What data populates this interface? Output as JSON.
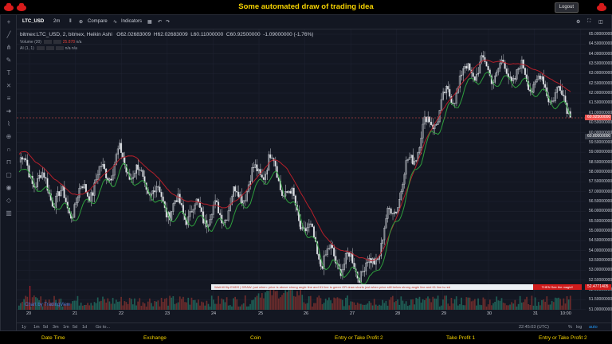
{
  "header": {
    "title": "Some automated draw of trading idea",
    "logout_label": "Logout"
  },
  "toolbar": {
    "symbol": "LTC_USD",
    "interval": "2m",
    "compare_label": "Compare",
    "indicators_label": "Indicators"
  },
  "legend": {
    "main": "bitmex:LTC_USD, 2, bitmex, Heikin Ashi",
    "open": "O62.02683009",
    "high": "H62.02683009",
    "low": "L60.11000000",
    "close": "C60.92500000",
    "change": "-1.09000000 (-1.76%)",
    "volume_label": "Volume (20)",
    "volume_value": "25.878",
    "volume_na": "n/a",
    "ai_label": "AI (1, 1)",
    "ai_na1": "n/a",
    "ai_na2": "n/a"
  },
  "y_axis_labels": [
    "65.00000000",
    "64.50000000",
    "64.00000000",
    "63.50000000",
    "63.00000000",
    "62.50000000",
    "62.00000000",
    "61.50000000",
    "61.00000000",
    "60.50000000",
    "60.00000000",
    "59.50000000",
    "59.00000000",
    "58.50000000",
    "58.00000000",
    "57.50000000",
    "57.00000000",
    "56.50000000",
    "56.00000000",
    "55.50000000",
    "55.00000000",
    "54.50000000",
    "54.00000000",
    "53.50000000",
    "53.00000000",
    "52.50000000",
    "52.00000000",
    "51.50000000",
    "51.00000000"
  ],
  "price_tags": {
    "current": "60.92500000",
    "secondary": "60.80000000",
    "marker": "52.4771405"
  },
  "x_axis_labels": [
    "20",
    "21",
    "22",
    "23",
    "24",
    "25",
    "26",
    "27",
    "28",
    "29",
    "30",
    "31",
    "10:00"
  ],
  "banners": {
    "wait": "Wait till flip ENDS  |  DRAW: just when:  price is above strong angle line and 61 line is green      OR      draw shorts just when price still below strong angle line and 61 line is red",
    "magic": "THEN See the magic!!"
  },
  "watermark": "Chart by TradingView",
  "bottom_bar": {
    "ranges": [
      "1y",
      "1m",
      "5d",
      "3m",
      "1m",
      "5d",
      "1d",
      "Go to..."
    ],
    "time": "22:45:03 (UTC)",
    "pct": "%",
    "log": "log",
    "auto": "auto"
  },
  "footer": {
    "columns": [
      "Date Time",
      "Exchange",
      "Coin",
      "Entry or Take Profit 2",
      "Take Profit 1",
      "Entry or Take Profit 2"
    ]
  },
  "colors": {
    "up": "#26a69a",
    "down": "#ef5350",
    "accent": "#f5d200",
    "bg": "#131722"
  },
  "chart_data": {
    "type": "line",
    "xlabel": "",
    "ylabel": "",
    "categories": [
      "20",
      "21",
      "22",
      "23",
      "24",
      "25",
      "26",
      "27",
      "28",
      "29",
      "30",
      "31"
    ],
    "series": [
      {
        "values": [
          58.5,
          56.2,
          58.7,
          56.2,
          55.8,
          58.6,
          53.8,
          53.0,
          59.8,
          63.3,
          63.0,
          61.5
        ]
      }
    ],
    "ylim": [
      51.0,
      65.0
    ]
  }
}
